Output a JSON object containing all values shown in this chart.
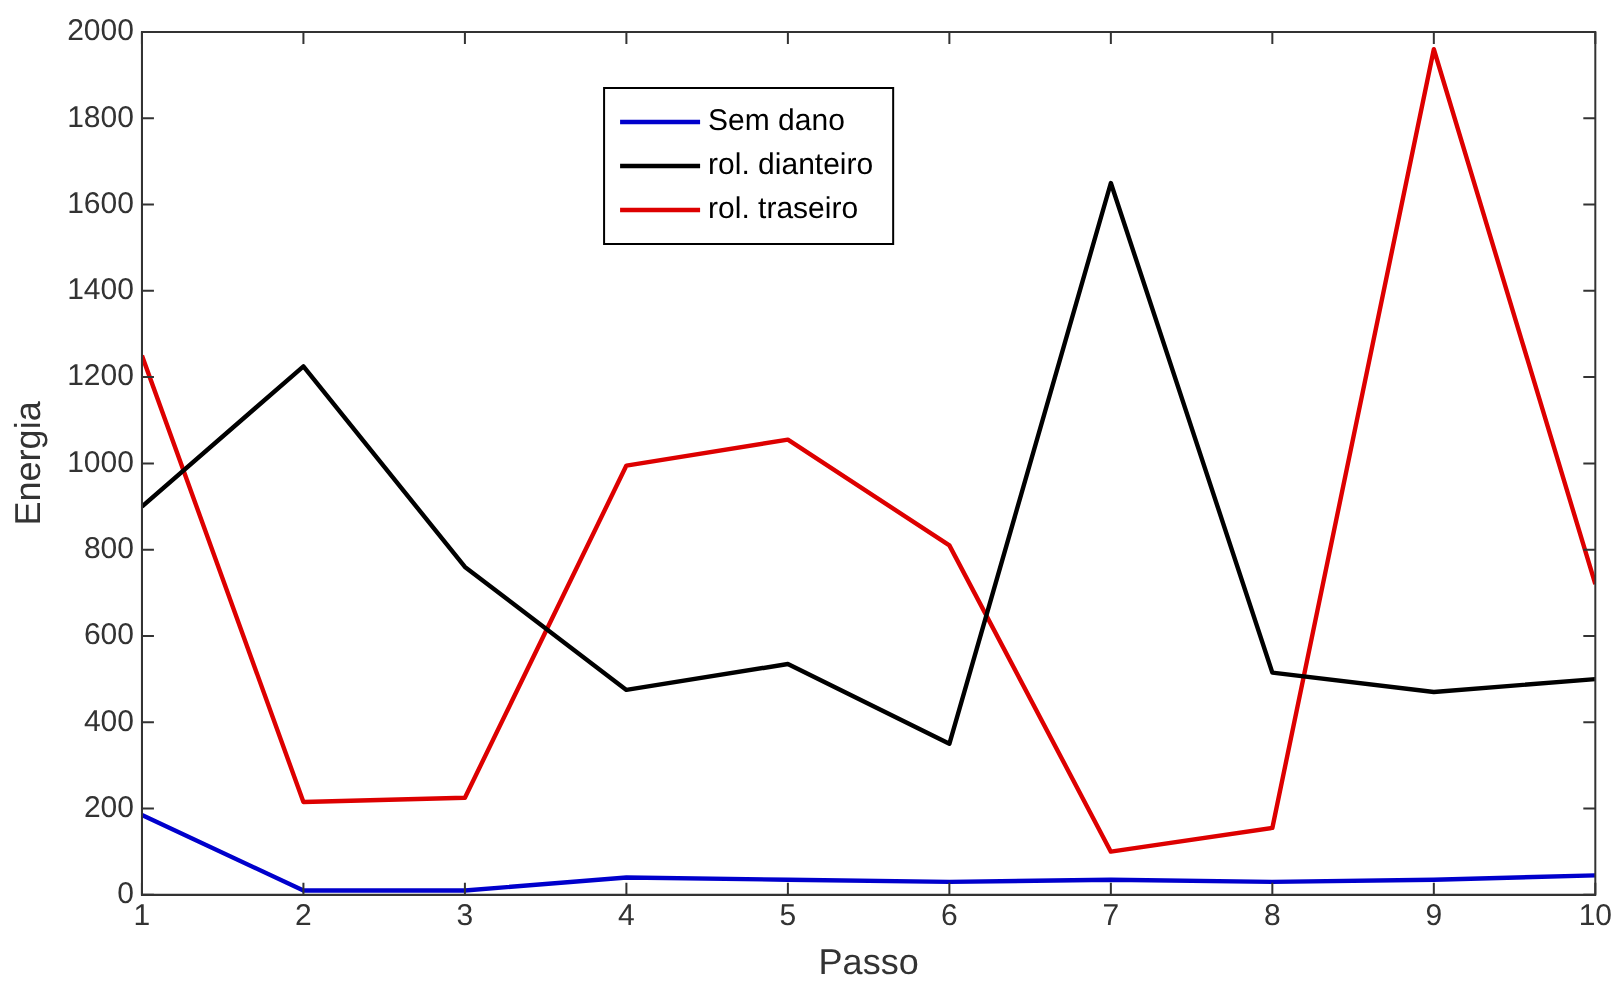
{
  "chart_data": {
    "type": "line",
    "xlabel": "Passo",
    "ylabel": "Energia",
    "x": [
      1,
      2,
      3,
      4,
      5,
      6,
      7,
      8,
      9,
      10
    ],
    "series": [
      {
        "name": "Sem dano",
        "color": "#0000cc",
        "values": [
          185,
          10,
          10,
          40,
          35,
          30,
          35,
          30,
          35,
          45
        ]
      },
      {
        "name": "rol. dianteiro",
        "color": "#000000",
        "values": [
          900,
          1225,
          760,
          475,
          535,
          350,
          1650,
          515,
          470,
          500
        ]
      },
      {
        "name": "rol. traseiro",
        "color": "#dd0000",
        "values": [
          1250,
          215,
          225,
          995,
          1055,
          810,
          100,
          155,
          1960,
          720
        ]
      }
    ],
    "xlim": [
      1,
      10
    ],
    "xticks": [
      1,
      2,
      3,
      4,
      5,
      6,
      7,
      8,
      9,
      10
    ],
    "ylim": [
      0,
      2000
    ],
    "yticks": [
      0,
      200,
      400,
      600,
      800,
      1000,
      1200,
      1400,
      1600,
      1800,
      2000
    ],
    "grid": false,
    "legend": "top",
    "marker": "none",
    "line_style": "solid"
  }
}
